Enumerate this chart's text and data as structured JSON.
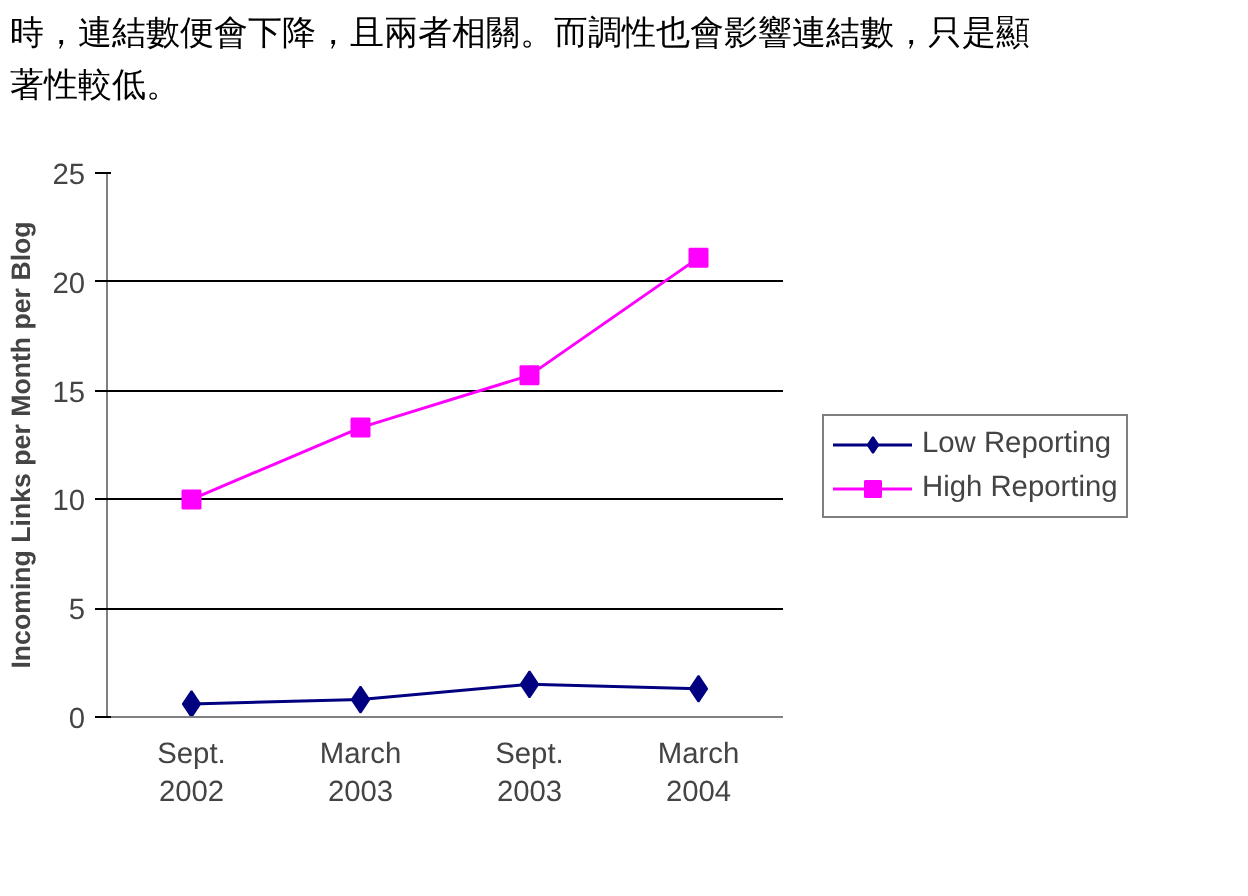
{
  "chart_data": {
    "type": "line",
    "ylabel": "Incoming Links per Month per Blog",
    "annotations": [
      "時，連結數便會下降，且兩者相關。而調性也會影響連結數，只是顯",
      "著性較低。"
    ],
    "categories": [
      "Sept. 2002",
      "March 2003",
      "Sept. 2003",
      "March 2004"
    ],
    "series": [
      {
        "name": "Low Reporting",
        "color": "#000080",
        "marker": "diamond",
        "values": [
          0.6,
          0.8,
          1.5,
          1.3
        ]
      },
      {
        "name": "High Reporting",
        "color": "#ff00ff",
        "marker": "square",
        "values": [
          10.0,
          13.3,
          15.7,
          21.1
        ]
      }
    ],
    "ylim": [
      0,
      25
    ],
    "yticks": [
      0,
      5,
      10,
      15,
      20,
      25
    ],
    "grid": "y",
    "legend": "right"
  }
}
